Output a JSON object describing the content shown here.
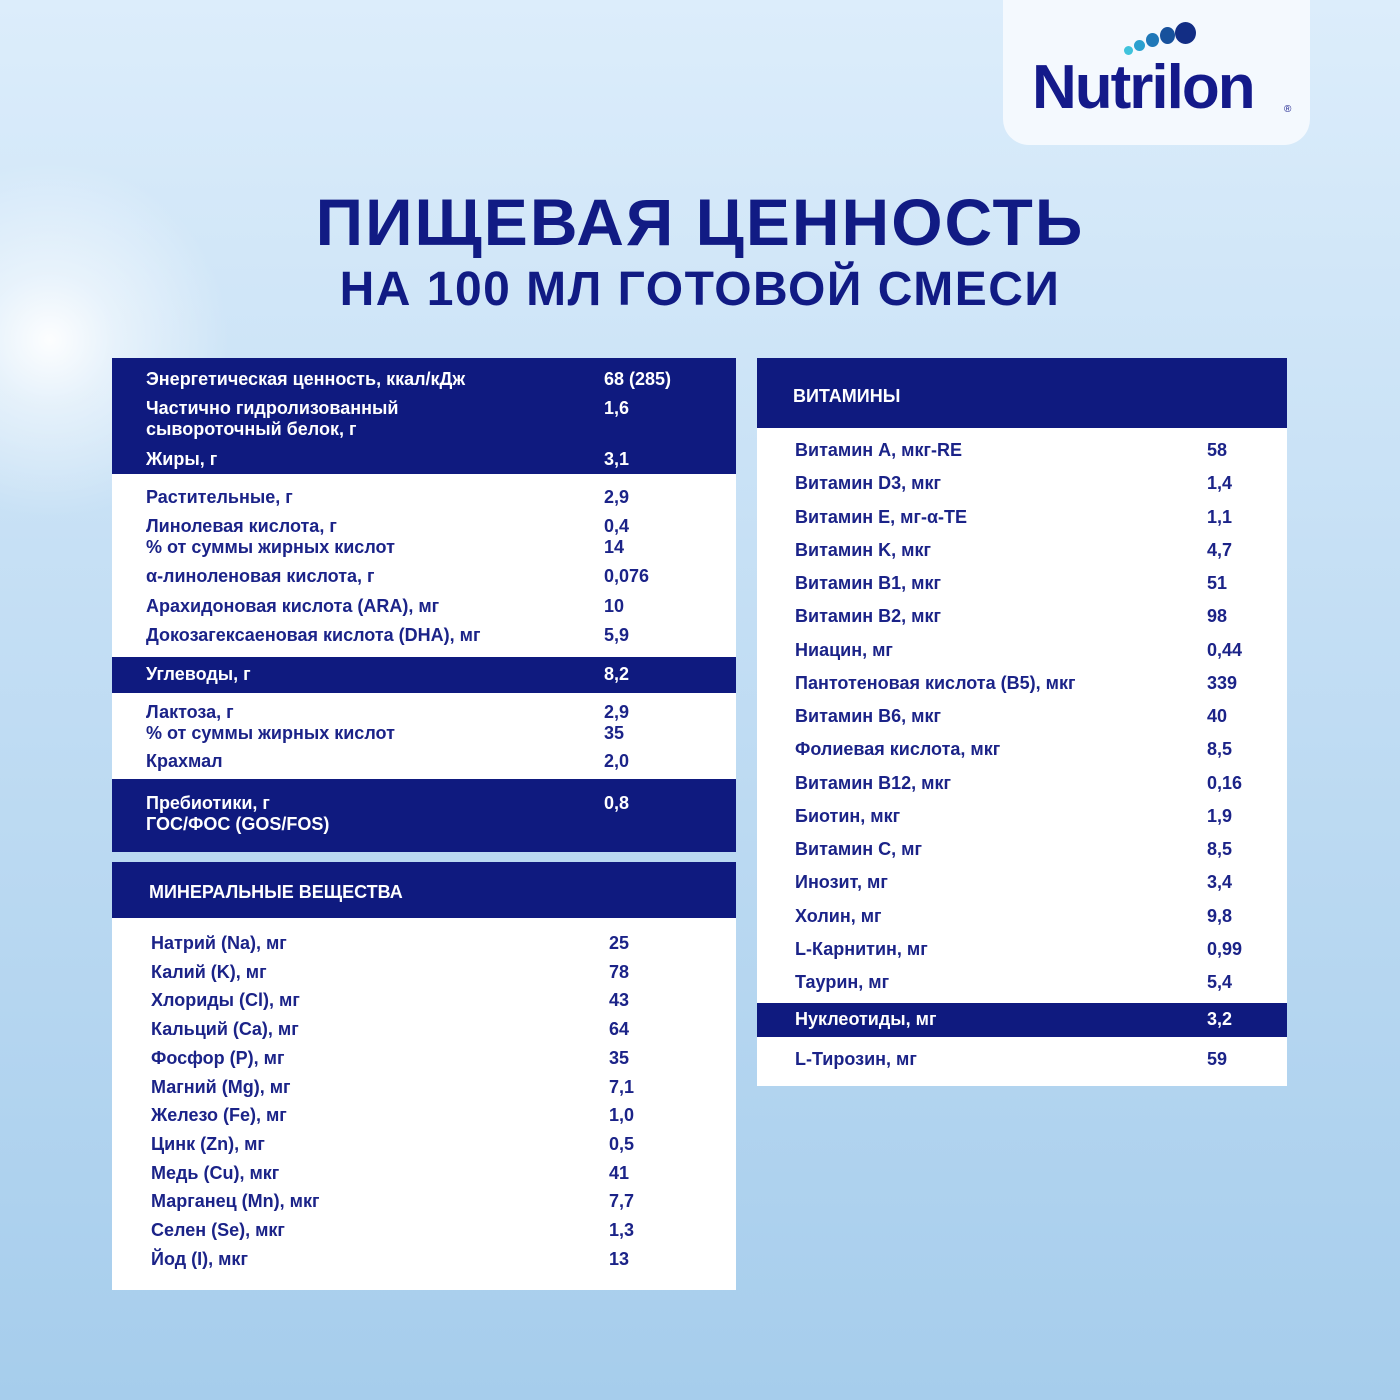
{
  "brand": {
    "logo_text": "Nutrilon",
    "registered_mark": "®",
    "colors": {
      "navy": "#0f1a7f",
      "text": "#1b2388",
      "dots": [
        "#3fc3dc",
        "#2aa0cf",
        "#1f78b8",
        "#17519c",
        "#122d84"
      ]
    }
  },
  "title": {
    "line1": "ПИЩЕВАЯ ЦЕННОСТЬ",
    "line2": "НА 100 МЛ ГОТОВОЙ СМЕСИ"
  },
  "left": {
    "rows": [
      {
        "label": "Энергетическая ценность, ккал/кДж",
        "value": "68 (285)"
      },
      {
        "label": "Частично гидролизованный\nсывороточный белок, г",
        "value": "1,6"
      },
      {
        "label": "Жиры, г",
        "value": "3,1"
      },
      {
        "label": "Растительные, г",
        "value": "2,9"
      },
      {
        "label": "Линолевая кислота, г\n% от суммы жирных кислот",
        "value": "0,4\n14"
      },
      {
        "label": "α-линоленовая кислота, г",
        "value": "0,076"
      },
      {
        "label": "Арахидоновая кислота (ARA), мг",
        "value": "10"
      },
      {
        "label": "Докозагексаеновая кислота (DHA), мг",
        "value": "5,9"
      },
      {
        "label": "Углеводы, г",
        "value": "8,2"
      },
      {
        "label": "Лактоза, г\n% от суммы жирных кислот",
        "value": "2,9\n35"
      },
      {
        "label": "Крахмал",
        "value": "2,0"
      },
      {
        "label": "Пребиотики, г\nГОС/ФОС (GOS/FOS)",
        "value": "0,8"
      }
    ]
  },
  "minerals": {
    "header": "МИНЕРАЛЬНЫЕ ВЕЩЕСТВА",
    "rows": [
      {
        "label": "Натрий (Na), мг",
        "value": "25"
      },
      {
        "label": "Калий (K), мг",
        "value": "78"
      },
      {
        "label": "Хлориды (Cl), мг",
        "value": "43"
      },
      {
        "label": "Кальций (Ca), мг",
        "value": "64"
      },
      {
        "label": "Фосфор (P), мг",
        "value": "35"
      },
      {
        "label": "Магний (Mg), мг",
        "value": "7,1"
      },
      {
        "label": "Железо (Fe), мг",
        "value": "1,0"
      },
      {
        "label": "Цинк (Zn), мг",
        "value": "0,5"
      },
      {
        "label": "Медь (Cu), мкг",
        "value": "41"
      },
      {
        "label": "Марганец (Mn), мкг",
        "value": "7,7"
      },
      {
        "label": "Селен (Se), мкг",
        "value": "1,3"
      },
      {
        "label": "Йод (I), мкг",
        "value": "13"
      }
    ]
  },
  "vitamins": {
    "header": "ВИТАМИНЫ",
    "rows": [
      {
        "label": "Витамин A, мкг-RE",
        "value": "58"
      },
      {
        "label": "Витамин D3, мкг",
        "value": "1,4"
      },
      {
        "label": "Витамин E, мг-α-TE",
        "value": "1,1"
      },
      {
        "label": "Витамин K, мкг",
        "value": "4,7"
      },
      {
        "label": "Витамин B1, мкг",
        "value": "51"
      },
      {
        "label": "Витамин B2, мкг",
        "value": "98"
      },
      {
        "label": "Ниацин, мг",
        "value": "0,44"
      },
      {
        "label": "Пантотеновая кислота (B5), мкг",
        "value": "339"
      },
      {
        "label": "Витамин B6, мкг",
        "value": "40"
      },
      {
        "label": "Фолиевая кислота, мкг",
        "value": "8,5"
      },
      {
        "label": "Витамин B12, мкг",
        "value": "0,16"
      },
      {
        "label": "Биотин, мкг",
        "value": "1,9"
      },
      {
        "label": "Витамин C, мг",
        "value": "8,5"
      },
      {
        "label": "Инозит, мг",
        "value": "3,4"
      },
      {
        "label": "Холин, мг",
        "value": "9,8"
      },
      {
        "label": "L-Карнитин, мг",
        "value": "0,99"
      },
      {
        "label": "Таурин, мг",
        "value": "5,4"
      },
      {
        "label": "Нуклеотиды, мг",
        "value": "3,2"
      },
      {
        "label": "L-Тирозин, мг",
        "value": "59"
      }
    ]
  }
}
